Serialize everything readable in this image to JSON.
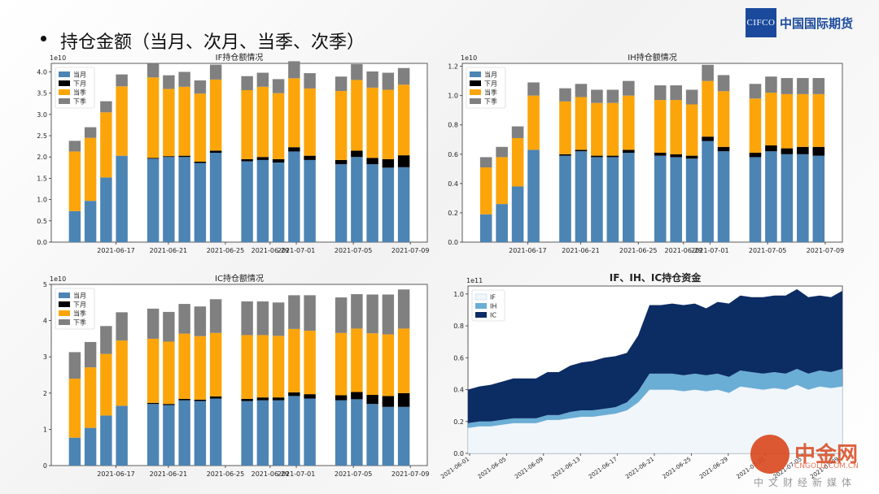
{
  "slide": {
    "title": "持仓金额（当月、次月、当季、次季）"
  },
  "logo": {
    "mark": "CIFCO",
    "name": "中国国际期货"
  },
  "watermark": {
    "name": "中金网",
    "url": "CNGOLD.COM.CN",
    "subtitle": "中文财经新媒体"
  },
  "colors": {
    "dangyue": "#4c84b4",
    "ciyue": "#000000",
    "dangji": "#fca50a",
    "ciji": "#808080",
    "if_area": "#f1f6fb",
    "ih_area": "#6aadd5",
    "ic_area": "#0c2c64"
  },
  "chart_data": [
    {
      "id": "if",
      "type": "bar",
      "stacked": true,
      "title": "IF持仓额情况",
      "exponent": "1e10",
      "ylim": [
        0,
        4.2
      ],
      "yticks": [
        "0.0",
        "0.5",
        "1.0",
        "1.5",
        "2.0",
        "2.5",
        "3.0",
        "3.5",
        "4.0"
      ],
      "xtick_labels": [
        "2021-06-17",
        "2021-06-21",
        "2021-06-25",
        "2021-06-29",
        "2021-07-01",
        "2021-07-05",
        "2021-07-09"
      ],
      "legend": [
        "当月",
        "下月",
        "当季",
        "下季"
      ],
      "legend_position": "top-left",
      "series": [
        {
          "name": "当月",
          "values": [
            0.73,
            0.97,
            1.52,
            2.03,
            1.96,
            2.0,
            2.0,
            1.86,
            2.1,
            1.9,
            1.93,
            1.87,
            2.13,
            1.93,
            1.83,
            2.0,
            1.83,
            1.75,
            1.76
          ]
        },
        {
          "name": "下月",
          "values": [
            0.0,
            0.0,
            0.0,
            0.0,
            0.02,
            0.02,
            0.03,
            0.03,
            0.05,
            0.05,
            0.07,
            0.08,
            0.1,
            0.1,
            0.1,
            0.15,
            0.15,
            0.2,
            0.28
          ]
        },
        {
          "name": "当季",
          "values": [
            1.4,
            1.48,
            1.53,
            1.63,
            1.89,
            1.58,
            1.62,
            1.6,
            1.67,
            1.62,
            1.65,
            1.55,
            1.62,
            1.58,
            1.62,
            1.66,
            1.65,
            1.63,
            1.66
          ]
        },
        {
          "name": "下季",
          "values": [
            0.25,
            0.25,
            0.26,
            0.28,
            0.33,
            0.32,
            0.35,
            0.31,
            0.35,
            0.33,
            0.33,
            0.33,
            0.4,
            0.36,
            0.34,
            0.37,
            0.38,
            0.4,
            0.39
          ]
        }
      ]
    },
    {
      "id": "ih",
      "type": "bar",
      "stacked": true,
      "title": "IH持仓额情况",
      "exponent": "1e10",
      "ylim": [
        0,
        1.22
      ],
      "yticks": [
        "0.0",
        "0.2",
        "0.4",
        "0.6",
        "0.8",
        "1.0",
        "1.2"
      ],
      "xtick_labels": [
        "2021-06-17",
        "2021-06-21",
        "2021-06-25",
        "2021-06-29",
        "2021-07-01",
        "2021-07-05",
        "2021-07-09"
      ],
      "legend": [
        "当月",
        "下月",
        "当季",
        "下季"
      ],
      "legend_position": "top-left",
      "series": [
        {
          "name": "当月",
          "values": [
            0.19,
            0.26,
            0.38,
            0.63,
            0.59,
            0.62,
            0.58,
            0.58,
            0.61,
            0.59,
            0.58,
            0.57,
            0.69,
            0.62,
            0.58,
            0.62,
            0.6,
            0.6,
            0.59
          ]
        },
        {
          "name": "下月",
          "values": [
            0.0,
            0.0,
            0.0,
            0.0,
            0.01,
            0.01,
            0.01,
            0.01,
            0.02,
            0.02,
            0.02,
            0.02,
            0.03,
            0.03,
            0.03,
            0.04,
            0.04,
            0.05,
            0.06
          ]
        },
        {
          "name": "当季",
          "values": [
            0.32,
            0.32,
            0.33,
            0.37,
            0.36,
            0.36,
            0.36,
            0.36,
            0.37,
            0.36,
            0.37,
            0.35,
            0.38,
            0.38,
            0.37,
            0.36,
            0.37,
            0.36,
            0.36
          ]
        },
        {
          "name": "下季",
          "values": [
            0.07,
            0.07,
            0.08,
            0.09,
            0.09,
            0.09,
            0.09,
            0.09,
            0.1,
            0.1,
            0.1,
            0.1,
            0.11,
            0.11,
            0.1,
            0.11,
            0.11,
            0.11,
            0.11
          ]
        }
      ]
    },
    {
      "id": "ic",
      "type": "bar",
      "stacked": true,
      "title": "IC持仓额情况",
      "exponent": "1e10",
      "ylim": [
        0,
        5.0
      ],
      "yticks": [
        "0",
        "1",
        "2",
        "3",
        "4",
        "5"
      ],
      "xtick_labels": [
        "2021-06-17",
        "2021-06-21",
        "2021-06-25",
        "2021-06-29",
        "2021-07-01",
        "2021-07-05",
        "2021-07-09"
      ],
      "legend": [
        "当月",
        "下月",
        "当季",
        "下季"
      ],
      "legend_position": "top-left",
      "series": [
        {
          "name": "当月",
          "values": [
            0.77,
            1.04,
            1.38,
            1.65,
            1.7,
            1.67,
            1.8,
            1.78,
            1.85,
            1.78,
            1.8,
            1.8,
            1.92,
            1.85,
            1.8,
            1.83,
            1.7,
            1.62,
            1.62
          ]
        },
        {
          "name": "下月",
          "values": [
            0.0,
            0.0,
            0.0,
            0.0,
            0.03,
            0.03,
            0.04,
            0.04,
            0.06,
            0.06,
            0.08,
            0.08,
            0.1,
            0.12,
            0.14,
            0.2,
            0.25,
            0.3,
            0.38
          ]
        },
        {
          "name": "当季",
          "values": [
            1.63,
            1.67,
            1.7,
            1.8,
            1.77,
            1.72,
            1.8,
            1.75,
            1.75,
            1.76,
            1.72,
            1.7,
            1.75,
            1.75,
            1.72,
            1.75,
            1.7,
            1.7,
            1.78
          ]
        },
        {
          "name": "下季",
          "values": [
            0.73,
            0.7,
            0.77,
            0.78,
            0.83,
            0.82,
            0.82,
            0.82,
            0.93,
            0.93,
            0.93,
            0.92,
            0.93,
            0.98,
            0.98,
            0.95,
            1.07,
            1.1,
            1.08
          ]
        }
      ]
    },
    {
      "id": "total",
      "type": "area",
      "stacked": true,
      "title": "IF、IH、IC持仓资金",
      "exponent": "1e11",
      "ylim": [
        0,
        1.05
      ],
      "yticks": [
        "0.0",
        "0.2",
        "0.4",
        "0.6",
        "0.8",
        "1.0"
      ],
      "xtick_labels": [
        "2021-06-01",
        "2021-06-05",
        "2021-06-09",
        "2021-06-13",
        "2021-06-17",
        "2021-06-21",
        "2021-06-25",
        "2021-06-29",
        "2021-07-01",
        "2021-07-05",
        "2021-07-09"
      ],
      "legend": [
        "IF",
        "IH",
        "IC"
      ],
      "legend_position": "top-left",
      "series": [
        {
          "name": "IF",
          "values": [
            0.16,
            0.17,
            0.17,
            0.18,
            0.19,
            0.19,
            0.19,
            0.21,
            0.21,
            0.22,
            0.23,
            0.23,
            0.24,
            0.25,
            0.27,
            0.32,
            0.4,
            0.4,
            0.4,
            0.39,
            0.4,
            0.39,
            0.4,
            0.38,
            0.42,
            0.41,
            0.4,
            0.41,
            0.4,
            0.43,
            0.4,
            0.42,
            0.41,
            0.42
          ]
        },
        {
          "name": "IH",
          "values": [
            0.03,
            0.03,
            0.03,
            0.03,
            0.03,
            0.03,
            0.03,
            0.03,
            0.03,
            0.04,
            0.04,
            0.04,
            0.04,
            0.04,
            0.05,
            0.07,
            0.1,
            0.1,
            0.1,
            0.1,
            0.1,
            0.1,
            0.1,
            0.1,
            0.1,
            0.1,
            0.1,
            0.1,
            0.1,
            0.1,
            0.1,
            0.1,
            0.1,
            0.11
          ]
        },
        {
          "name": "IC",
          "values": [
            0.21,
            0.22,
            0.23,
            0.24,
            0.25,
            0.25,
            0.25,
            0.27,
            0.27,
            0.29,
            0.3,
            0.31,
            0.32,
            0.32,
            0.31,
            0.35,
            0.43,
            0.43,
            0.44,
            0.44,
            0.44,
            0.42,
            0.45,
            0.46,
            0.47,
            0.47,
            0.48,
            0.48,
            0.49,
            0.5,
            0.48,
            0.47,
            0.47,
            0.49
          ]
        }
      ]
    }
  ]
}
